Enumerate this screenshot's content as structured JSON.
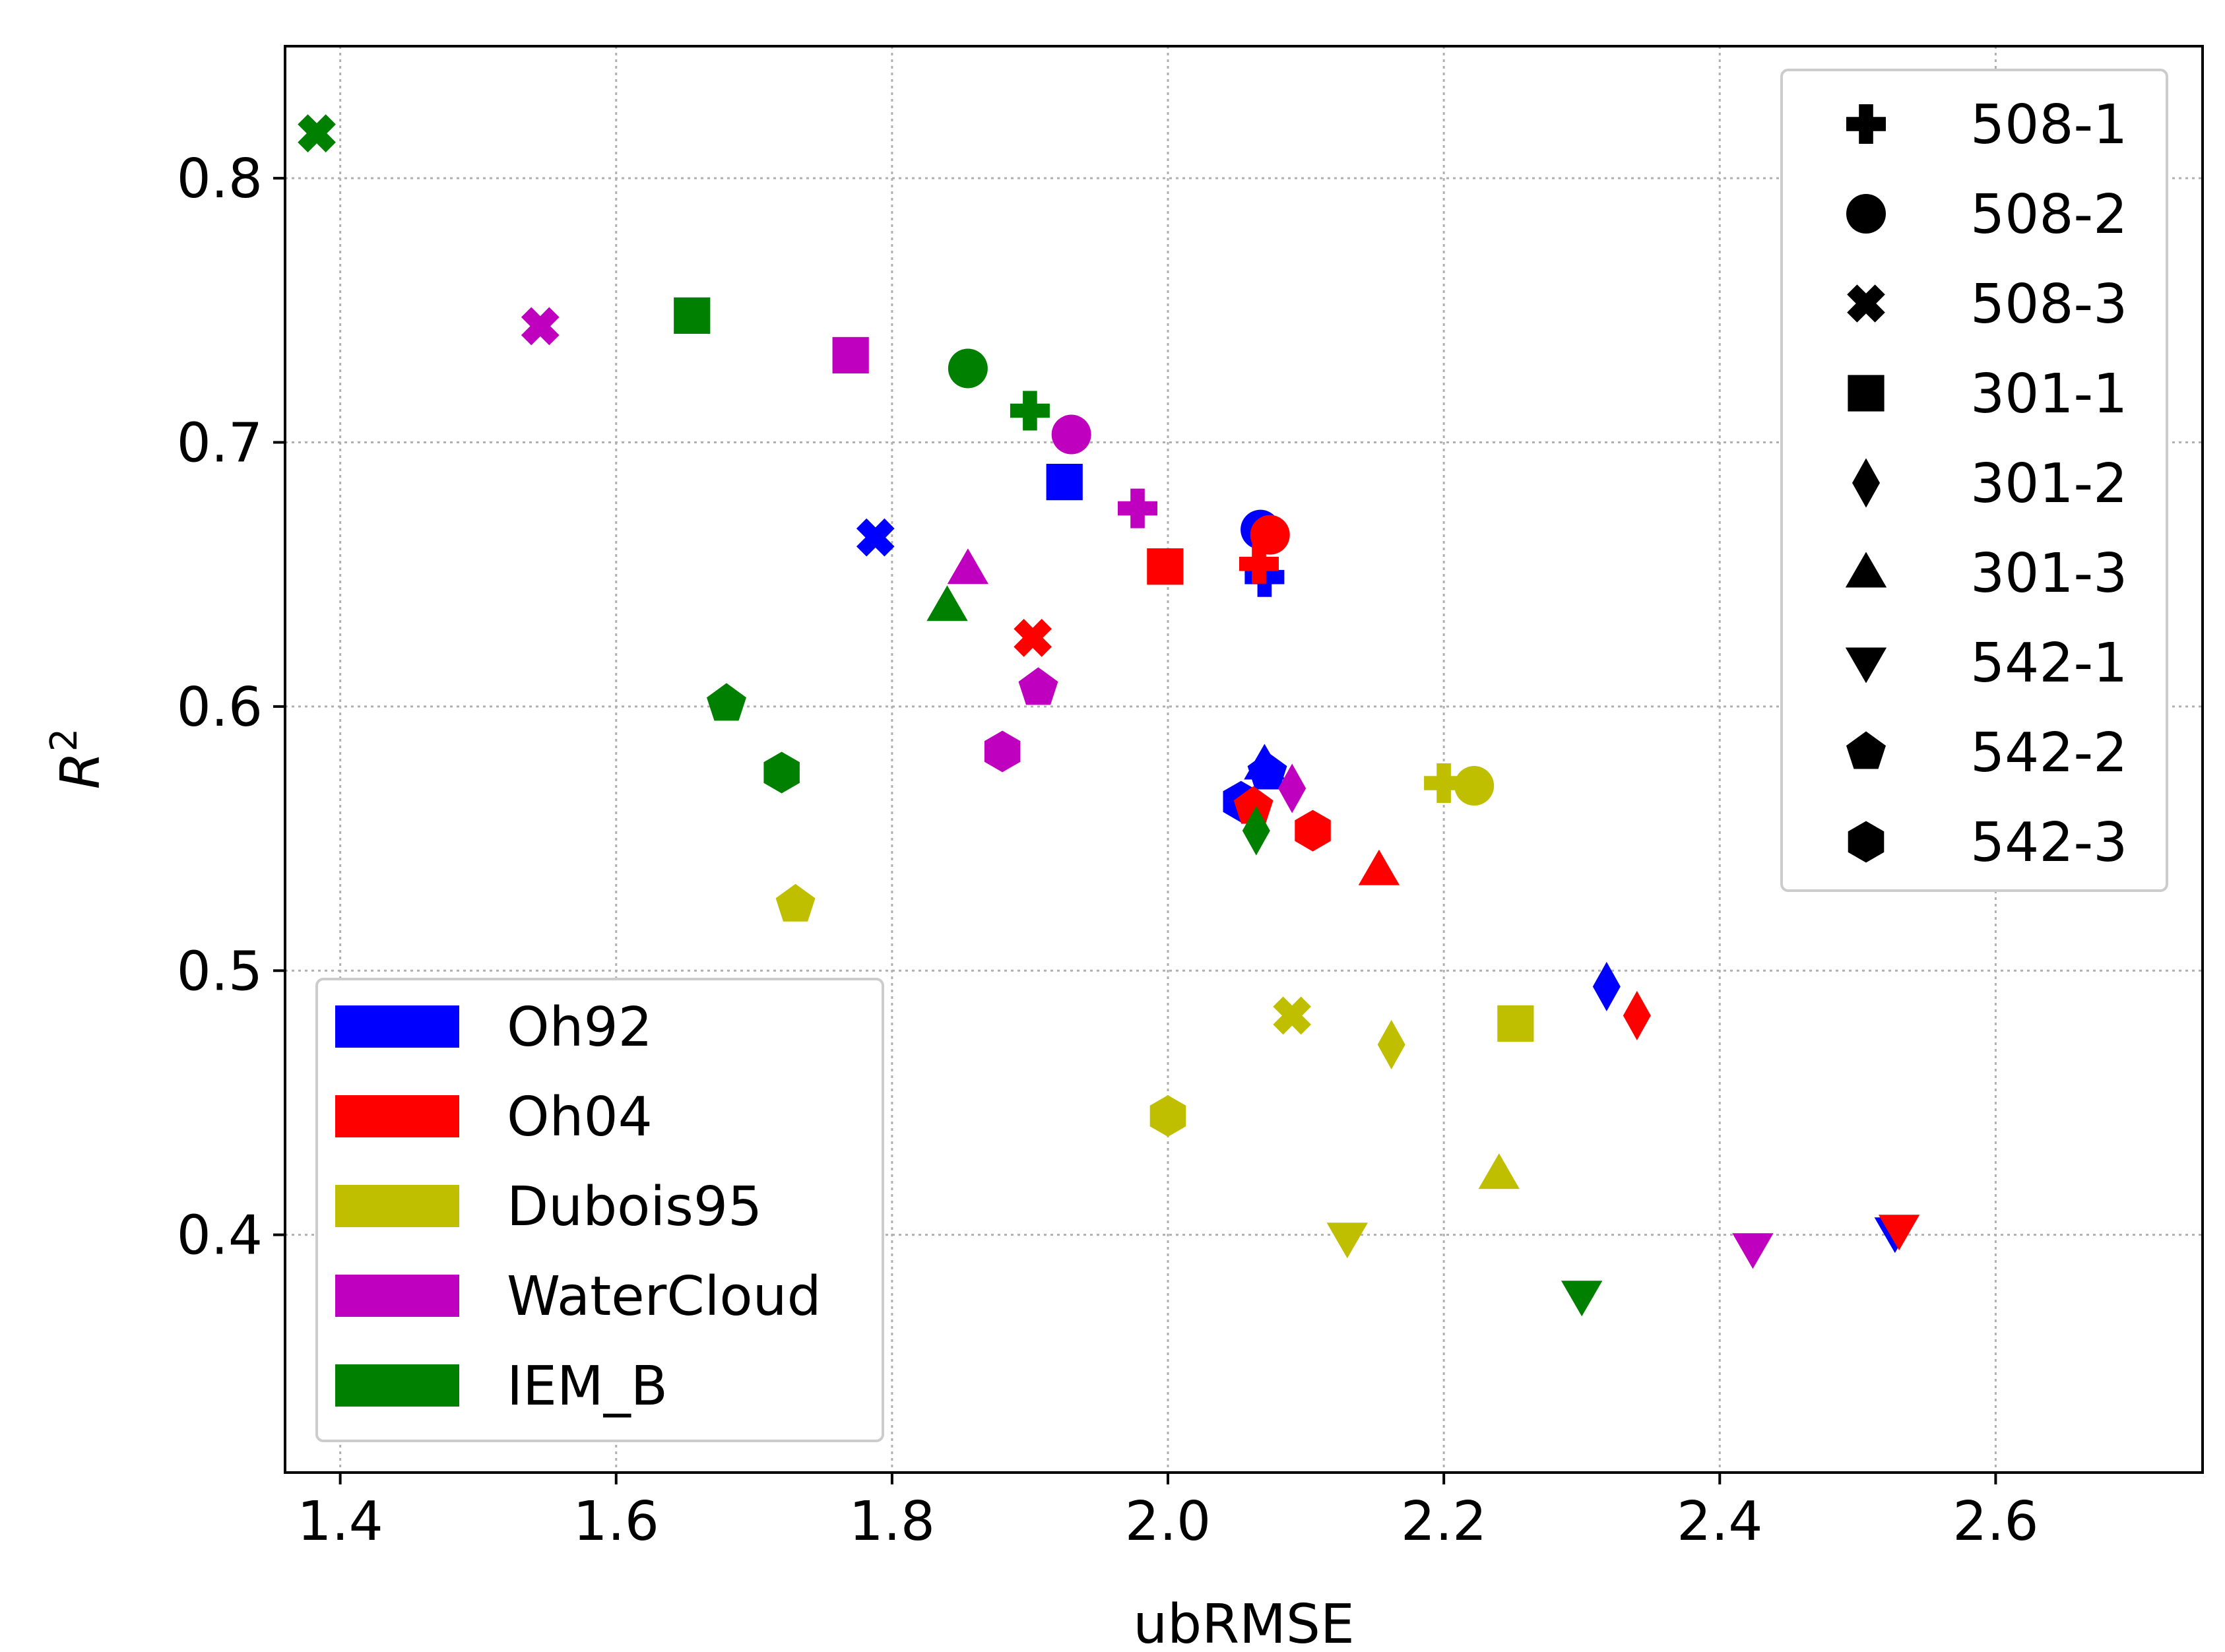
{
  "chart_data": {
    "type": "scatter",
    "title": "",
    "xlabel": "ubRMSE",
    "ylabel_base": "R",
    "ylabel_sup": "2",
    "xlim": [
      1.36,
      2.75
    ],
    "ylim": [
      0.31,
      0.85
    ],
    "xticks": [
      "1.4",
      "1.6",
      "1.8",
      "2.0",
      "2.2",
      "2.4",
      "2.6"
    ],
    "yticks": [
      "0.4",
      "0.5",
      "0.6",
      "0.7",
      "0.8"
    ],
    "grid": true,
    "models": [
      {
        "name": "Oh92",
        "color": "#0000ff"
      },
      {
        "name": "Oh04",
        "color": "#ff0000"
      },
      {
        "name": "Dubois95",
        "color": "#bfbf00"
      },
      {
        "name": "WaterCloud",
        "color": "#bf00bf"
      },
      {
        "name": "IEM_B",
        "color": "#008000"
      }
    ],
    "sites": [
      {
        "name": "508-1",
        "marker": "plus"
      },
      {
        "name": "508-2",
        "marker": "circle"
      },
      {
        "name": "508-3",
        "marker": "x"
      },
      {
        "name": "301-1",
        "marker": "square"
      },
      {
        "name": "301-2",
        "marker": "diamond"
      },
      {
        "name": "301-3",
        "marker": "triangle-up"
      },
      {
        "name": "542-1",
        "marker": "triangle-down"
      },
      {
        "name": "542-2",
        "marker": "pentagon"
      },
      {
        "name": "542-3",
        "marker": "hexagon"
      }
    ],
    "points": [
      {
        "model": "Oh92",
        "site": "508-1",
        "x": 2.07,
        "y": 0.649
      },
      {
        "model": "Oh92",
        "site": "508-2",
        "x": 2.067,
        "y": 0.667
      },
      {
        "model": "Oh92",
        "site": "508-3",
        "x": 1.788,
        "y": 0.664
      },
      {
        "model": "Oh92",
        "site": "301-1",
        "x": 1.925,
        "y": 0.685
      },
      {
        "model": "Oh92",
        "site": "301-2",
        "x": 2.318,
        "y": 0.494
      },
      {
        "model": "Oh92",
        "site": "301-3",
        "x": 2.07,
        "y": 0.578
      },
      {
        "model": "Oh92",
        "site": "542-1",
        "x": 2.527,
        "y": 0.401
      },
      {
        "model": "Oh92",
        "site": "542-2",
        "x": 2.072,
        "y": 0.575
      },
      {
        "model": "Oh92",
        "site": "542-3",
        "x": 2.053,
        "y": 0.564
      },
      {
        "model": "Oh04",
        "site": "508-1",
        "x": 2.066,
        "y": 0.654
      },
      {
        "model": "Oh04",
        "site": "508-2",
        "x": 2.074,
        "y": 0.665
      },
      {
        "model": "Oh04",
        "site": "508-3",
        "x": 1.902,
        "y": 0.626
      },
      {
        "model": "Oh04",
        "site": "301-1",
        "x": 1.998,
        "y": 0.653
      },
      {
        "model": "Oh04",
        "site": "301-2",
        "x": 2.34,
        "y": 0.483
      },
      {
        "model": "Oh04",
        "site": "301-3",
        "x": 2.153,
        "y": 0.538
      },
      {
        "model": "Oh04",
        "site": "542-1",
        "x": 2.53,
        "y": 0.402
      },
      {
        "model": "Oh04",
        "site": "542-2",
        "x": 2.062,
        "y": 0.562
      },
      {
        "model": "Oh04",
        "site": "542-3",
        "x": 2.105,
        "y": 0.553
      },
      {
        "model": "Dubois95",
        "site": "508-1",
        "x": 2.2,
        "y": 0.571
      },
      {
        "model": "Dubois95",
        "site": "508-2",
        "x": 2.222,
        "y": 0.57
      },
      {
        "model": "Dubois95",
        "site": "508-3",
        "x": 2.09,
        "y": 0.483
      },
      {
        "model": "Dubois95",
        "site": "301-1",
        "x": 2.252,
        "y": 0.48
      },
      {
        "model": "Dubois95",
        "site": "301-2",
        "x": 2.162,
        "y": 0.472
      },
      {
        "model": "Dubois95",
        "site": "301-3",
        "x": 2.24,
        "y": 0.423
      },
      {
        "model": "Dubois95",
        "site": "542-1",
        "x": 2.13,
        "y": 0.399
      },
      {
        "model": "Dubois95",
        "site": "542-2",
        "x": 1.73,
        "y": 0.525
      },
      {
        "model": "Dubois95",
        "site": "542-3",
        "x": 2.0,
        "y": 0.445
      },
      {
        "model": "WaterCloud",
        "site": "508-1",
        "x": 1.978,
        "y": 0.675
      },
      {
        "model": "WaterCloud",
        "site": "508-2",
        "x": 1.93,
        "y": 0.703
      },
      {
        "model": "WaterCloud",
        "site": "508-3",
        "x": 1.545,
        "y": 0.744
      },
      {
        "model": "WaterCloud",
        "site": "301-1",
        "x": 1.77,
        "y": 0.733
      },
      {
        "model": "WaterCloud",
        "site": "301-2",
        "x": 2.09,
        "y": 0.569
      },
      {
        "model": "WaterCloud",
        "site": "301-3",
        "x": 1.855,
        "y": 0.652
      },
      {
        "model": "WaterCloud",
        "site": "542-1",
        "x": 2.424,
        "y": 0.395
      },
      {
        "model": "WaterCloud",
        "site": "542-2",
        "x": 1.906,
        "y": 0.607
      },
      {
        "model": "WaterCloud",
        "site": "542-3",
        "x": 1.88,
        "y": 0.583
      },
      {
        "model": "IEM_B",
        "site": "508-1",
        "x": 1.9,
        "y": 0.712
      },
      {
        "model": "IEM_B",
        "site": "508-2",
        "x": 1.855,
        "y": 0.728
      },
      {
        "model": "IEM_B",
        "site": "508-3",
        "x": 1.383,
        "y": 0.817
      },
      {
        "model": "IEM_B",
        "site": "301-1",
        "x": 1.655,
        "y": 0.748
      },
      {
        "model": "IEM_B",
        "site": "301-2",
        "x": 2.064,
        "y": 0.553
      },
      {
        "model": "IEM_B",
        "site": "301-3",
        "x": 1.84,
        "y": 0.638
      },
      {
        "model": "IEM_B",
        "site": "542-1",
        "x": 2.3,
        "y": 0.377
      },
      {
        "model": "IEM_B",
        "site": "542-2",
        "x": 1.68,
        "y": 0.601
      },
      {
        "model": "IEM_B",
        "site": "542-3",
        "x": 1.72,
        "y": 0.575
      }
    ]
  }
}
